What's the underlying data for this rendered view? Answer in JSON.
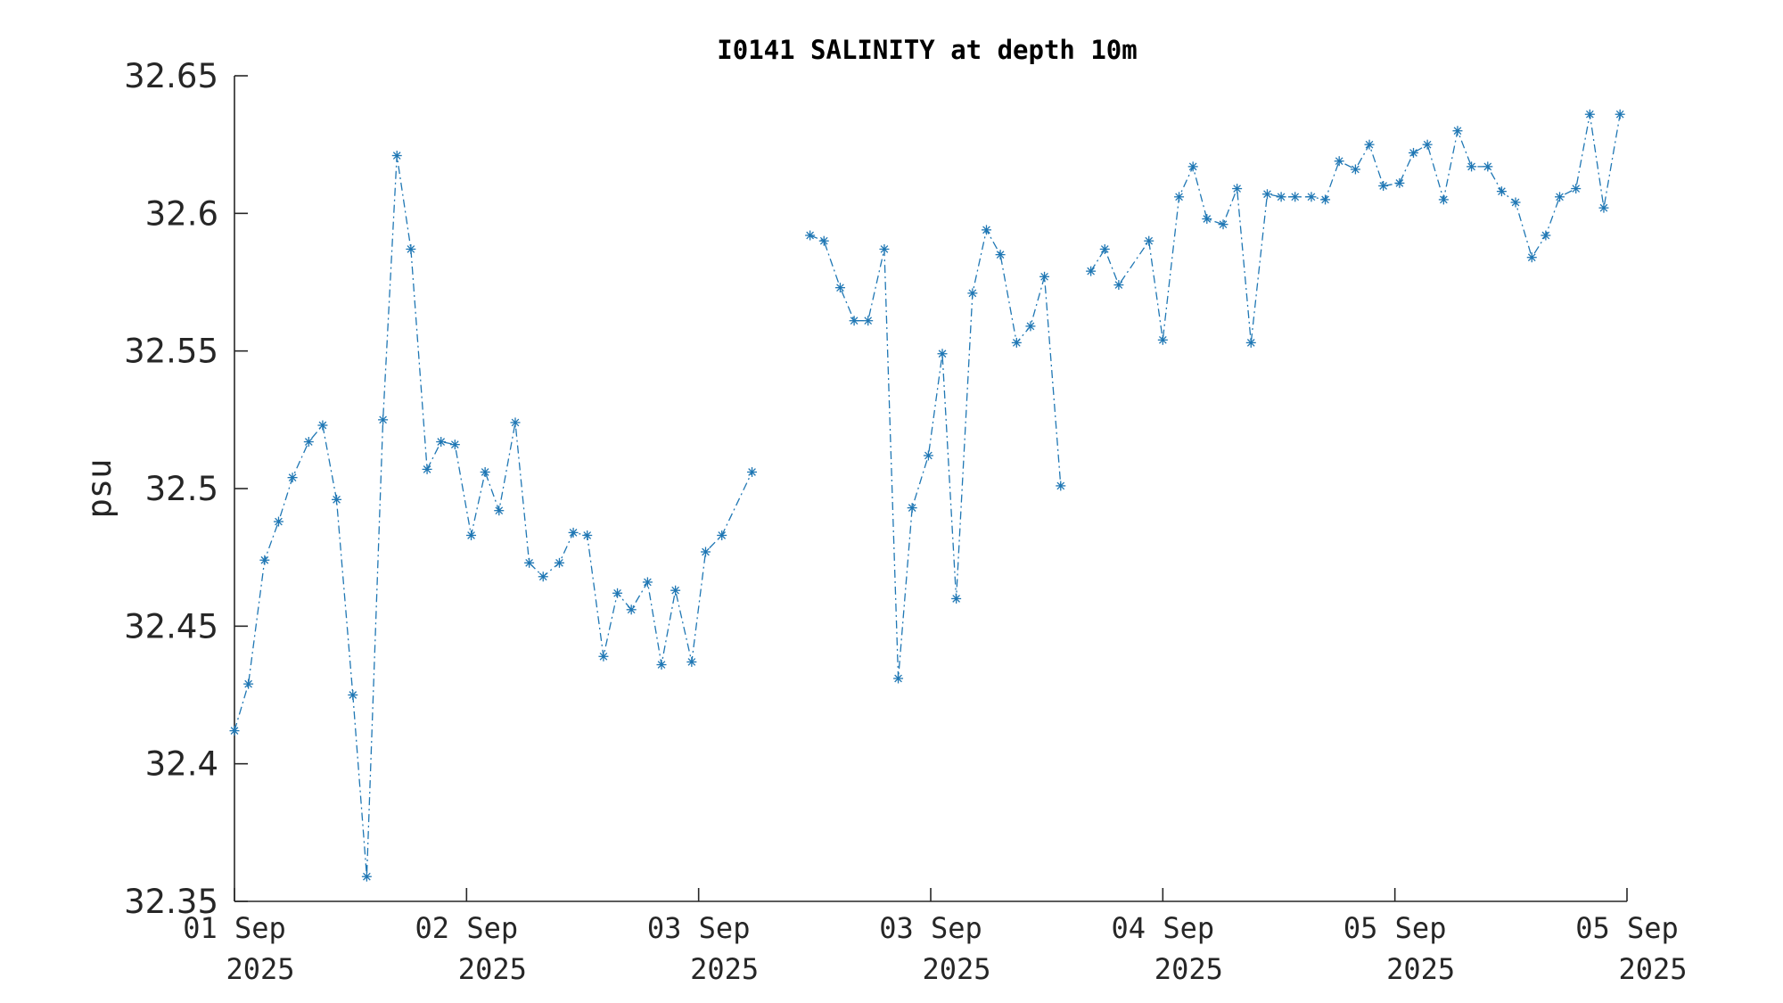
{
  "chart_data": {
    "type": "line",
    "title": "I0141 SALINITY at depth 10m",
    "xlabel": "",
    "ylabel": "psu",
    "ylim": [
      32.35,
      32.65
    ],
    "yticks": [
      "32.35",
      "32.4",
      "32.45",
      "32.5",
      "32.55",
      "32.6",
      "32.65"
    ],
    "xticks": [
      {
        "day": "01 Sep",
        "year": "2025"
      },
      {
        "day": "02 Sep",
        "year": "2025"
      },
      {
        "day": "03 Sep",
        "year": "2025"
      },
      {
        "day": "03 Sep",
        "year": "2025"
      },
      {
        "day": "04 Sep",
        "year": "2025"
      },
      {
        "day": "05 Sep",
        "year": "2025"
      },
      {
        "day": "05 Sep",
        "year": "2025"
      }
    ],
    "grid": false,
    "series": [
      {
        "color": "#1f77b4",
        "line_style": "dash-dot",
        "marker": "asterisk",
        "points": [
          [
            0.0,
            32.412
          ],
          [
            0.06,
            32.429
          ],
          [
            0.13,
            32.474
          ],
          [
            0.19,
            32.488
          ],
          [
            0.25,
            32.504
          ],
          [
            0.32,
            32.517
          ],
          [
            0.38,
            32.523
          ],
          [
            0.44,
            32.496
          ],
          [
            0.51,
            32.425
          ],
          [
            0.57,
            32.359
          ],
          [
            0.64,
            32.525
          ],
          [
            0.7,
            32.621
          ],
          [
            0.76,
            32.587
          ],
          [
            0.83,
            32.507
          ],
          [
            0.89,
            32.517
          ],
          [
            0.95,
            32.516
          ],
          [
            1.02,
            32.483
          ],
          [
            1.08,
            32.506
          ],
          [
            1.14,
            32.492
          ],
          [
            1.21,
            32.524
          ],
          [
            1.27,
            32.473
          ],
          [
            1.33,
            32.468
          ],
          [
            1.4,
            32.473
          ],
          [
            1.46,
            32.484
          ],
          [
            1.52,
            32.483
          ],
          [
            1.59,
            32.439
          ],
          [
            1.65,
            32.462
          ],
          [
            1.71,
            32.456
          ],
          [
            1.78,
            32.466
          ],
          [
            1.84,
            32.436
          ],
          [
            1.9,
            32.463
          ],
          [
            1.97,
            32.437
          ],
          [
            2.03,
            32.477
          ],
          [
            2.1,
            32.483
          ],
          [
            2.23,
            32.506
          ],
          null,
          [
            2.48,
            32.592
          ],
          [
            2.54,
            32.59
          ],
          [
            2.61,
            32.573
          ],
          [
            2.67,
            32.561
          ],
          [
            2.73,
            32.561
          ],
          [
            2.8,
            32.587
          ],
          [
            2.86,
            32.431
          ],
          [
            2.92,
            32.493
          ],
          [
            2.99,
            32.512
          ],
          [
            3.05,
            32.549
          ],
          [
            3.11,
            32.46
          ],
          [
            3.18,
            32.571
          ],
          [
            3.24,
            32.594
          ],
          [
            3.3,
            32.585
          ],
          [
            3.37,
            32.553
          ],
          [
            3.43,
            32.559
          ],
          [
            3.49,
            32.577
          ],
          [
            3.56,
            32.501
          ],
          null,
          [
            3.69,
            32.579
          ],
          [
            3.75,
            32.587
          ],
          [
            3.81,
            32.574
          ],
          [
            3.94,
            32.59
          ],
          [
            4.0,
            32.554
          ],
          [
            4.07,
            32.606
          ],
          [
            4.13,
            32.617
          ],
          [
            4.19,
            32.598
          ],
          [
            4.26,
            32.596
          ],
          [
            4.32,
            32.609
          ],
          [
            4.38,
            32.553
          ],
          [
            4.45,
            32.607
          ],
          [
            4.51,
            32.606
          ],
          [
            4.57,
            32.606
          ],
          [
            4.64,
            32.606
          ],
          [
            4.7,
            32.605
          ],
          [
            4.76,
            32.619
          ],
          [
            4.83,
            32.616
          ],
          [
            4.89,
            32.625
          ],
          [
            4.95,
            32.61
          ],
          [
            5.02,
            32.611
          ],
          [
            5.08,
            32.622
          ],
          [
            5.14,
            32.625
          ],
          [
            5.21,
            32.605
          ],
          [
            5.27,
            32.63
          ],
          [
            5.33,
            32.617
          ],
          [
            5.4,
            32.617
          ],
          [
            5.46,
            32.608
          ],
          [
            5.52,
            32.604
          ],
          [
            5.59,
            32.584
          ],
          [
            5.65,
            32.592
          ],
          [
            5.71,
            32.606
          ],
          [
            5.78,
            32.609
          ],
          [
            5.84,
            32.636
          ],
          [
            5.9,
            32.602
          ],
          [
            5.97,
            32.636
          ]
        ]
      }
    ]
  }
}
